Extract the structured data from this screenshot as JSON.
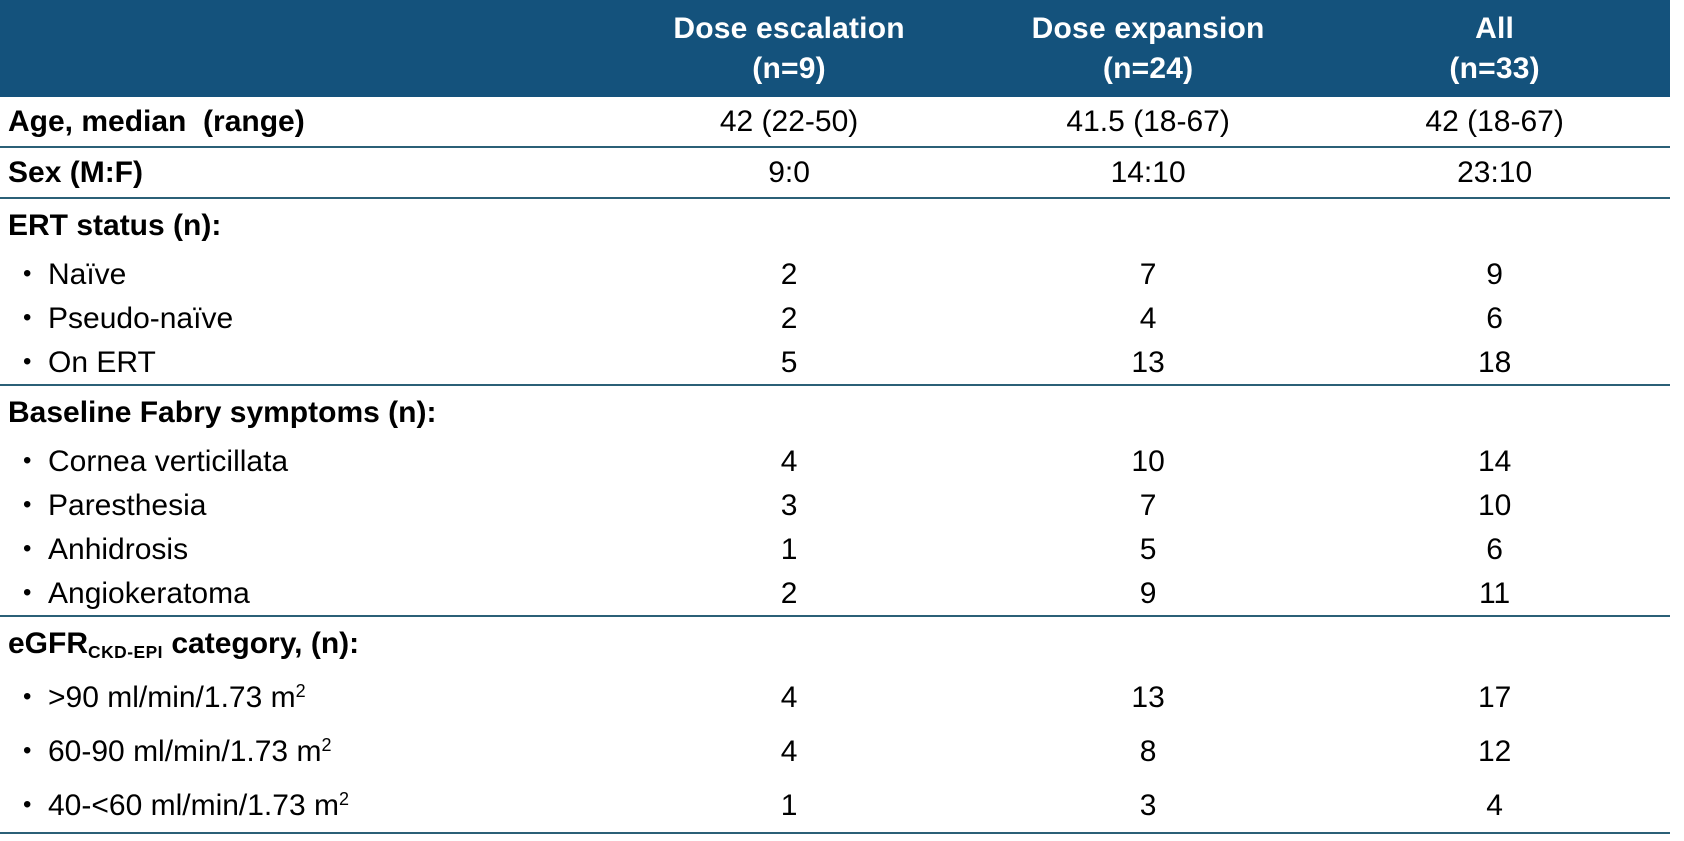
{
  "colors": {
    "header_background": "#14527C",
    "header_text": "#FFFFFF",
    "divider_line": "#2B6077",
    "body_text": "#000000",
    "page_background": "#FFFFFF"
  },
  "bullet_glyph": "•",
  "table": {
    "header": {
      "columns": [
        {
          "id": "dose-escalation",
          "title": "Dose escalation",
          "n": "(n=9)"
        },
        {
          "id": "dose-expansion",
          "title": "Dose expansion",
          "n": "(n=24)"
        },
        {
          "id": "all",
          "title": "All",
          "n": "(n=33)"
        }
      ]
    },
    "body": [
      {
        "type": "row",
        "id": "age-median-range",
        "label": [
          {
            "t": "Age, median  (range)"
          }
        ],
        "values": [
          "42 (22-50)",
          "41.5 (18-67)",
          "42 (18-67)"
        ],
        "divider": true
      },
      {
        "type": "row",
        "id": "sex-mf",
        "label": [
          {
            "t": "Sex (M:F)"
          }
        ],
        "values": [
          "9:0",
          "14:10",
          "23:10"
        ],
        "divider": true
      },
      {
        "type": "section",
        "id": "ert-status",
        "label": [
          {
            "t": "ERT status (n):"
          }
        ],
        "items": [
          {
            "id": "naive",
            "label": [
              {
                "t": "Naïve"
              }
            ],
            "values": [
              "2",
              "7",
              "9"
            ]
          },
          {
            "id": "pseudo-naive",
            "label": [
              {
                "t": "Pseudo-naïve"
              }
            ],
            "values": [
              "2",
              "4",
              "6"
            ]
          },
          {
            "id": "on-ert",
            "label": [
              {
                "t": "On ERT"
              }
            ],
            "values": [
              "5",
              "13",
              "18"
            ]
          }
        ],
        "divider": true
      },
      {
        "type": "section",
        "id": "baseline-fabry-symptoms",
        "label": [
          {
            "t": "Baseline Fabry symptoms (n):"
          }
        ],
        "items": [
          {
            "id": "cornea-verticillata",
            "label": [
              {
                "t": "Cornea verticillata"
              }
            ],
            "values": [
              "4",
              "10",
              "14"
            ]
          },
          {
            "id": "paresthesia",
            "label": [
              {
                "t": "Paresthesia"
              }
            ],
            "values": [
              "3",
              "7",
              "10"
            ]
          },
          {
            "id": "anhidrosis",
            "label": [
              {
                "t": "Anhidrosis"
              }
            ],
            "values": [
              "1",
              "5",
              "6"
            ]
          },
          {
            "id": "angiokeratoma",
            "label": [
              {
                "t": "Angiokeratoma"
              }
            ],
            "values": [
              "2",
              "9",
              "11"
            ]
          }
        ],
        "divider": true
      },
      {
        "type": "section",
        "id": "egfr-category",
        "label": [
          {
            "t": "eGFR"
          },
          {
            "t": "CKD-EPI",
            "style": "sub"
          },
          {
            "t": " category, (n):"
          }
        ],
        "items": [
          {
            "id": "egfr-gt-90",
            "label": [
              {
                "t": ">90 ml/min/1.73 m"
              },
              {
                "t": "2",
                "style": "sup"
              }
            ],
            "values": [
              "4",
              "13",
              "17"
            ]
          },
          {
            "id": "egfr-60-90",
            "label": [
              {
                "t": "60-90 ml/min/1.73 m"
              },
              {
                "t": "2",
                "style": "sup"
              }
            ],
            "values": [
              "4",
              "8",
              "12"
            ]
          },
          {
            "id": "egfr-40-lt60",
            "label": [
              {
                "t": "40-<60 ml/min/1.73 m"
              },
              {
                "t": "2",
                "style": "sup"
              }
            ],
            "values": [
              "1",
              "3",
              "4"
            ]
          }
        ],
        "divider": true
      }
    ]
  }
}
